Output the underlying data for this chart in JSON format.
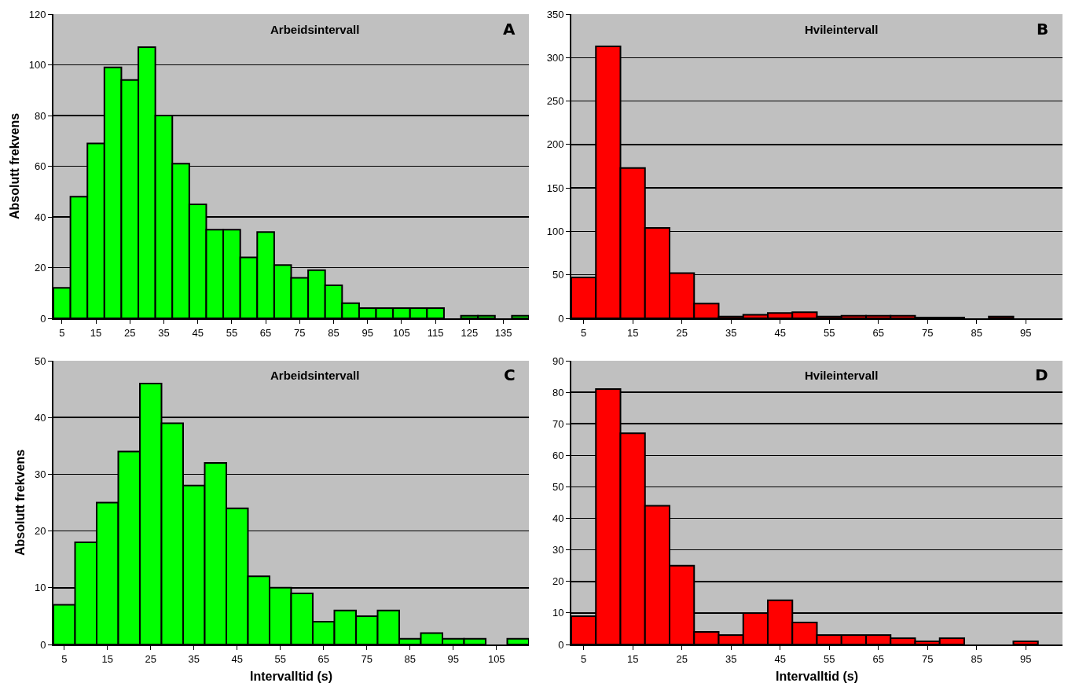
{
  "chart_data": [
    {
      "type": "histogram",
      "title": "Arbeidsintervall",
      "annotations": [
        "A"
      ],
      "ylabel": "Absolutt frekvens",
      "color": "#00ff00",
      "bins": [
        2.5,
        7.5,
        12.5,
        17.5,
        22.5,
        27.5,
        32.5,
        37.5,
        42.5,
        47.5,
        52.5,
        57.5,
        62.5,
        67.5,
        72.5,
        77.5,
        82.5,
        87.5,
        92.5,
        97.5,
        102.5,
        107.5,
        112.5,
        117.5,
        122.5,
        127.5,
        132.5,
        137.5,
        142.5
      ],
      "values": [
        12,
        48,
        69,
        99,
        94,
        107,
        80,
        61,
        45,
        35,
        35,
        24,
        34,
        21,
        16,
        19,
        13,
        6,
        4,
        4,
        4,
        4,
        4,
        0,
        1,
        1,
        0,
        1
      ],
      "xlim": [
        2.5,
        142.5
      ],
      "xticks": [
        5,
        15,
        25,
        35,
        45,
        55,
        65,
        75,
        85,
        95,
        105,
        115,
        125,
        135
      ],
      "ylim": [
        0,
        120
      ],
      "yticks": [
        0,
        20,
        40,
        60,
        80,
        100,
        120
      ],
      "grid": "y"
    },
    {
      "type": "histogram",
      "title": "Hvileintervall",
      "annotations": [
        "B"
      ],
      "color": "#ff0000",
      "bins": [
        2.5,
        7.5,
        12.5,
        17.5,
        22.5,
        27.5,
        32.5,
        37.5,
        42.5,
        47.5,
        52.5,
        57.5,
        62.5,
        67.5,
        72.5,
        77.5,
        82.5,
        87.5,
        92.5,
        97.5,
        102.5
      ],
      "values": [
        47,
        313,
        173,
        104,
        52,
        17,
        2,
        4,
        6,
        7,
        2,
        3,
        3,
        3,
        1,
        1,
        0,
        2,
        0,
        0
      ],
      "xlim": [
        2.5,
        102.5
      ],
      "xticks": [
        5,
        15,
        25,
        35,
        45,
        55,
        65,
        75,
        85,
        95
      ],
      "ylim": [
        0,
        350
      ],
      "yticks": [
        0,
        50,
        100,
        150,
        200,
        250,
        300,
        350
      ],
      "grid": "y"
    },
    {
      "type": "histogram",
      "title": "Arbeidsintervall",
      "annotations": [
        "C"
      ],
      "ylabel": "Absolutt frekvens",
      "xlabel": "Intervalltid (s)",
      "color": "#00ff00",
      "bins": [
        2.5,
        7.5,
        12.5,
        17.5,
        22.5,
        27.5,
        32.5,
        37.5,
        42.5,
        47.5,
        52.5,
        57.5,
        62.5,
        67.5,
        72.5,
        77.5,
        82.5,
        87.5,
        92.5,
        97.5,
        102.5,
        107.5,
        112.5
      ],
      "values": [
        7,
        18,
        25,
        34,
        46,
        39,
        28,
        32,
        24,
        12,
        10,
        9,
        4,
        6,
        5,
        6,
        1,
        2,
        1,
        1,
        0,
        1
      ],
      "xlim": [
        2.5,
        112.5
      ],
      "xticks": [
        5,
        15,
        25,
        35,
        45,
        55,
        65,
        75,
        85,
        95,
        105
      ],
      "ylim": [
        0,
        50
      ],
      "yticks": [
        0,
        10,
        20,
        30,
        40,
        50
      ],
      "grid": "y"
    },
    {
      "type": "histogram",
      "title": "Hvileintervall",
      "annotations": [
        "D"
      ],
      "xlabel": "Intervalltid (s)",
      "color": "#ff0000",
      "bins": [
        2.5,
        7.5,
        12.5,
        17.5,
        22.5,
        27.5,
        32.5,
        37.5,
        42.5,
        47.5,
        52.5,
        57.5,
        62.5,
        67.5,
        72.5,
        77.5,
        82.5,
        87.5,
        92.5,
        97.5,
        102.5
      ],
      "values": [
        9,
        81,
        67,
        44,
        25,
        4,
        3,
        10,
        14,
        7,
        3,
        3,
        3,
        2,
        1,
        2,
        0,
        0,
        1,
        0
      ],
      "xlim": [
        2.5,
        102.5
      ],
      "xticks": [
        5,
        15,
        25,
        35,
        45,
        55,
        65,
        75,
        85,
        95
      ],
      "ylim": [
        0,
        90
      ],
      "yticks": [
        0,
        10,
        20,
        30,
        40,
        50,
        60,
        70,
        80,
        90
      ],
      "grid": "y"
    }
  ]
}
